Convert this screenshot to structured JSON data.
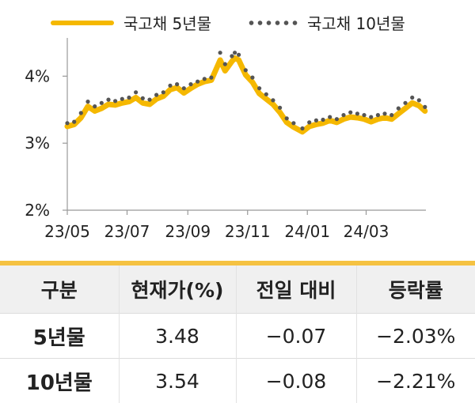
{
  "chart_data": {
    "type": "line",
    "title": "",
    "xlabel": "",
    "ylabel": "",
    "ylim": [
      2,
      4.5
    ],
    "y_ticks": [
      "2%",
      "3%",
      "4%"
    ],
    "y_tick_values": [
      2,
      3,
      4
    ],
    "x_ticks": [
      "23/05",
      "23/07",
      "23/09",
      "23/11",
      "24/01",
      "24/03"
    ],
    "x_tick_dates": [
      "2023-05-01",
      "2023-07-01",
      "2023-09-01",
      "2023-11-01",
      "2024-01-01",
      "2024-03-01"
    ],
    "x_range": [
      "2023-05-01",
      "2024-05-01"
    ],
    "legend_position": "top",
    "series": [
      {
        "name": "국고채 5년물",
        "style": "line",
        "color": "#F5B800",
        "dates": [
          "2023-05-01",
          "2023-05-08",
          "2023-05-15",
          "2023-05-22",
          "2023-05-29",
          "2023-06-05",
          "2023-06-12",
          "2023-06-19",
          "2023-06-26",
          "2023-07-03",
          "2023-07-10",
          "2023-07-17",
          "2023-07-24",
          "2023-07-31",
          "2023-08-07",
          "2023-08-14",
          "2023-08-21",
          "2023-08-28",
          "2023-09-04",
          "2023-09-11",
          "2023-09-18",
          "2023-09-25",
          "2023-10-04",
          "2023-10-09",
          "2023-10-16",
          "2023-10-19",
          "2023-10-23",
          "2023-10-30",
          "2023-11-06",
          "2023-11-13",
          "2023-11-20",
          "2023-11-27",
          "2023-12-04",
          "2023-12-11",
          "2023-12-18",
          "2023-12-27",
          "2024-01-03",
          "2024-01-10",
          "2024-01-17",
          "2024-01-24",
          "2024-01-31",
          "2024-02-07",
          "2024-02-14",
          "2024-02-21",
          "2024-02-28",
          "2024-03-06",
          "2024-03-13",
          "2024-03-20",
          "2024-03-27",
          "2024-04-03",
          "2024-04-10",
          "2024-04-17",
          "2024-04-24",
          "2024-04-30"
        ],
        "values": [
          3.25,
          3.28,
          3.38,
          3.55,
          3.48,
          3.52,
          3.58,
          3.57,
          3.6,
          3.62,
          3.68,
          3.6,
          3.58,
          3.66,
          3.7,
          3.8,
          3.83,
          3.75,
          3.82,
          3.88,
          3.92,
          3.94,
          4.24,
          4.08,
          4.22,
          4.27,
          4.24,
          4.02,
          3.91,
          3.74,
          3.66,
          3.58,
          3.46,
          3.31,
          3.24,
          3.17,
          3.25,
          3.28,
          3.3,
          3.34,
          3.31,
          3.36,
          3.39,
          3.38,
          3.36,
          3.32,
          3.36,
          3.38,
          3.36,
          3.44,
          3.52,
          3.6,
          3.56,
          3.48
        ]
      },
      {
        "name": "국고채 10년물",
        "style": "dots",
        "color": "#555555",
        "dates": [
          "2023-05-01",
          "2023-05-08",
          "2023-05-15",
          "2023-05-22",
          "2023-05-29",
          "2023-06-05",
          "2023-06-12",
          "2023-06-19",
          "2023-06-26",
          "2023-07-03",
          "2023-07-10",
          "2023-07-17",
          "2023-07-24",
          "2023-07-31",
          "2023-08-07",
          "2023-08-14",
          "2023-08-21",
          "2023-08-28",
          "2023-09-04",
          "2023-09-11",
          "2023-09-18",
          "2023-09-25",
          "2023-10-04",
          "2023-10-09",
          "2023-10-16",
          "2023-10-19",
          "2023-10-23",
          "2023-10-30",
          "2023-11-06",
          "2023-11-13",
          "2023-11-20",
          "2023-11-27",
          "2023-12-04",
          "2023-12-11",
          "2023-12-18",
          "2023-12-27",
          "2024-01-03",
          "2024-01-10",
          "2024-01-17",
          "2024-01-24",
          "2024-01-31",
          "2024-02-07",
          "2024-02-14",
          "2024-02-21",
          "2024-02-28",
          "2024-03-06",
          "2024-03-13",
          "2024-03-20",
          "2024-03-27",
          "2024-04-03",
          "2024-04-10",
          "2024-04-17",
          "2024-04-24",
          "2024-04-30"
        ],
        "values": [
          3.3,
          3.32,
          3.45,
          3.62,
          3.55,
          3.6,
          3.65,
          3.63,
          3.66,
          3.68,
          3.76,
          3.67,
          3.65,
          3.72,
          3.76,
          3.86,
          3.88,
          3.82,
          3.88,
          3.92,
          3.96,
          3.98,
          4.35,
          4.18,
          4.3,
          4.35,
          4.32,
          4.09,
          3.98,
          3.82,
          3.73,
          3.64,
          3.53,
          3.37,
          3.3,
          3.22,
          3.31,
          3.34,
          3.35,
          3.39,
          3.36,
          3.42,
          3.46,
          3.44,
          3.42,
          3.39,
          3.42,
          3.44,
          3.42,
          3.52,
          3.6,
          3.68,
          3.64,
          3.54
        ]
      }
    ]
  },
  "table": {
    "headers": [
      "구분",
      "현재가(%)",
      "전일 대비",
      "등락률"
    ],
    "rows": [
      {
        "label": "5년물",
        "price": "3.48",
        "change": "−0.07",
        "rate": "−2.03%"
      },
      {
        "label": "10년물",
        "price": "3.54",
        "change": "−0.08",
        "rate": "−2.21%"
      }
    ]
  }
}
